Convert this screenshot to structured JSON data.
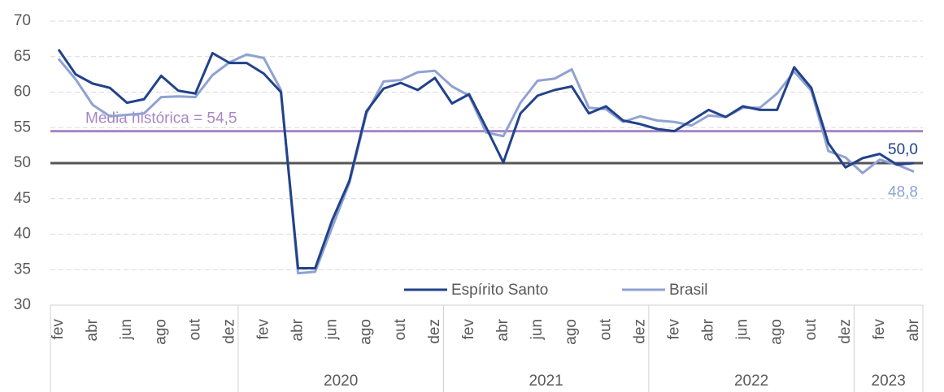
{
  "chart_data": {
    "type": "line",
    "categories": [
      "fev",
      null,
      "abr",
      null,
      "jun",
      null,
      "ago",
      null,
      "out",
      null,
      "dez",
      null,
      "fev",
      null,
      "abr",
      null,
      "jun",
      null,
      "ago",
      null,
      "out",
      null,
      "dez",
      null,
      "fev",
      null,
      "abr",
      null,
      "jun",
      null,
      "ago",
      null,
      "out",
      null,
      "dez",
      null,
      "fev",
      null,
      "abr",
      null,
      "jun",
      null,
      "ago",
      null,
      "out",
      null,
      "dez",
      null,
      "fev",
      null,
      "abr"
    ],
    "groups": [
      {
        "label": null,
        "count": 11
      },
      {
        "label": "2020",
        "count": 12
      },
      {
        "label": "2021",
        "count": 12
      },
      {
        "label": "2022",
        "count": 12
      },
      {
        "label": "2023",
        "count": 4
      }
    ],
    "series": [
      {
        "name": "Espírito Santo",
        "color": "#22428a",
        "values": [
          66,
          62.5,
          61.2,
          60.6,
          58.5,
          59,
          62.3,
          60.2,
          59.8,
          65.5,
          64.1,
          64.1,
          62.6,
          60,
          35.2,
          35.2,
          42,
          47.5,
          57.3,
          60.5,
          61.3,
          60.3,
          62,
          58.4,
          59.7,
          55,
          50.1,
          57,
          59.5,
          60.3,
          60.8,
          57,
          58,
          56,
          55.5,
          54.8,
          54.5,
          56,
          57.5,
          56.5,
          58,
          57.5,
          57.5,
          63.5,
          60.6,
          52.8,
          49.4,
          50.7,
          51.3,
          49.8,
          50.0
        ],
        "value_labels": [
          null,
          null,
          null,
          null,
          null,
          null,
          null,
          null,
          null,
          null,
          null,
          null,
          null,
          null,
          null,
          null,
          null,
          null,
          null,
          null,
          null,
          null,
          null,
          null,
          null,
          null,
          null,
          null,
          null,
          null,
          null,
          null,
          null,
          null,
          null,
          null,
          null,
          null,
          null,
          null,
          null,
          null,
          null,
          null,
          null,
          null,
          null,
          null,
          null,
          null,
          "50,0"
        ]
      },
      {
        "name": "Brasil",
        "color": "#8fa2d2",
        "values": [
          64.7,
          61.8,
          58.2,
          56.6,
          56.8,
          57,
          59.3,
          59.4,
          59.3,
          62.4,
          64.2,
          65.3,
          64.8,
          60.3,
          34.5,
          34.7,
          41,
          47.2,
          57,
          61.5,
          61.7,
          62.8,
          63,
          60.8,
          59.5,
          54.3,
          53.8,
          58.5,
          61.6,
          61.9,
          63.2,
          57.8,
          57.6,
          55.8,
          56.6,
          56,
          55.8,
          55.3,
          56.7,
          56.5,
          57.8,
          57.8,
          59.8,
          62.9,
          60.2,
          51.7,
          50.8,
          48.6,
          50.5,
          49.8,
          48.8
        ],
        "value_labels": [
          null,
          null,
          null,
          null,
          null,
          null,
          null,
          null,
          null,
          null,
          null,
          null,
          null,
          null,
          null,
          null,
          null,
          null,
          null,
          null,
          null,
          null,
          null,
          null,
          null,
          null,
          null,
          null,
          null,
          null,
          null,
          null,
          null,
          null,
          null,
          null,
          null,
          null,
          null,
          null,
          null,
          null,
          null,
          null,
          null,
          null,
          null,
          null,
          null,
          null,
          "48,8"
        ]
      }
    ],
    "reference_lines": [
      {
        "value": 54.5,
        "label": "Média histórica = 54,5",
        "color": "#a886c6"
      },
      {
        "value": 50,
        "color": "#555555"
      }
    ],
    "ylim": [
      30,
      70
    ],
    "yticks": [
      30,
      35,
      40,
      45,
      50,
      55,
      60,
      65,
      70
    ],
    "grid": true,
    "legend": "bottom"
  }
}
